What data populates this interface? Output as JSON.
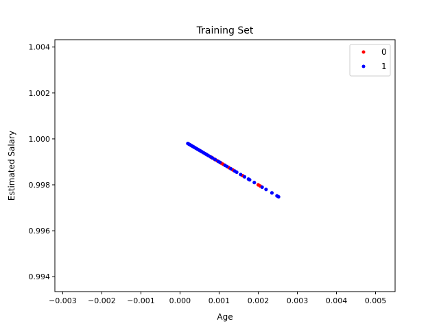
{
  "chart_data": {
    "type": "scatter",
    "title": "Training Set",
    "xlabel": "Age",
    "ylabel": "Estimated Salary",
    "xlim": [
      -0.0032,
      0.0055
    ],
    "ylim": [
      0.99335,
      1.00432
    ],
    "xticks": [
      -0.003,
      -0.002,
      -0.001,
      0.0,
      0.001,
      0.002,
      0.003,
      0.004,
      0.005
    ],
    "xtick_labels": [
      "−0.003",
      "−0.002",
      "−0.001",
      "0.000",
      "0.001",
      "0.002",
      "0.003",
      "0.004",
      "0.005"
    ],
    "yticks": [
      0.994,
      0.996,
      0.998,
      1.0,
      1.002,
      1.004
    ],
    "ytick_labels": [
      "0.994",
      "0.996",
      "0.998",
      "1.000",
      "1.002",
      "1.004"
    ],
    "grid": false,
    "legend_position": "top-right",
    "series": [
      {
        "name": "0",
        "color": "#ff0000",
        "points": [
          [
            0.0008,
            0.9992
          ],
          [
            0.00088,
            0.99912
          ],
          [
            0.00095,
            0.99905
          ],
          [
            0.00105,
            0.99895
          ],
          [
            0.0011,
            0.9989
          ],
          [
            0.00125,
            0.99875
          ],
          [
            0.00135,
            0.99865
          ],
          [
            0.0016,
            0.9984
          ],
          [
            0.002,
            0.998
          ],
          [
            0.00205,
            0.99795
          ]
        ]
      },
      {
        "name": "1",
        "color": "#0000ff",
        "points": [
          [
            0.0002,
            0.9998
          ],
          [
            0.00023,
            0.99977
          ],
          [
            0.00026,
            0.99974
          ],
          [
            0.00029,
            0.99971
          ],
          [
            0.00032,
            0.99968
          ],
          [
            0.00035,
            0.99965
          ],
          [
            0.00038,
            0.99962
          ],
          [
            0.00041,
            0.99959
          ],
          [
            0.00044,
            0.99956
          ],
          [
            0.00047,
            0.99953
          ],
          [
            0.0005,
            0.9995
          ],
          [
            0.00053,
            0.99947
          ],
          [
            0.00056,
            0.99944
          ],
          [
            0.0006,
            0.9994
          ],
          [
            0.00064,
            0.99936
          ],
          [
            0.00068,
            0.99932
          ],
          [
            0.00072,
            0.99928
          ],
          [
            0.00077,
            0.99923
          ],
          [
            0.00083,
            0.99917
          ],
          [
            0.0009,
            0.9991
          ],
          [
            0.00098,
            0.99902
          ],
          [
            0.00102,
            0.99898
          ],
          [
            0.00115,
            0.99885
          ],
          [
            0.0012,
            0.9988
          ],
          [
            0.0013,
            0.9987
          ],
          [
            0.0014,
            0.9986
          ],
          [
            0.00145,
            0.99855
          ],
          [
            0.00155,
            0.99845
          ],
          [
            0.00165,
            0.99835
          ],
          [
            0.00175,
            0.99825
          ],
          [
            0.00178,
            0.99822
          ],
          [
            0.0019,
            0.9981
          ],
          [
            0.0021,
            0.9979
          ],
          [
            0.0022,
            0.9978
          ],
          [
            0.00235,
            0.99765
          ],
          [
            0.00248,
            0.99752
          ],
          [
            0.00252,
            0.99748
          ]
        ]
      }
    ]
  }
}
